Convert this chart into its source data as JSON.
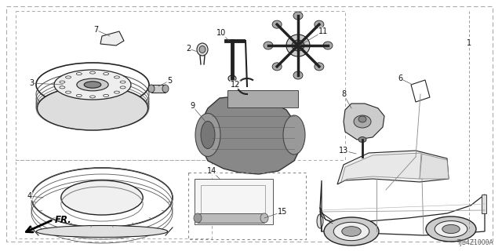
{
  "bg_color": "#ffffff",
  "line_color": "#222222",
  "diagram_code": "TJB4Z1000A",
  "figsize": [
    6.4,
    3.2
  ],
  "dpi": 100
}
